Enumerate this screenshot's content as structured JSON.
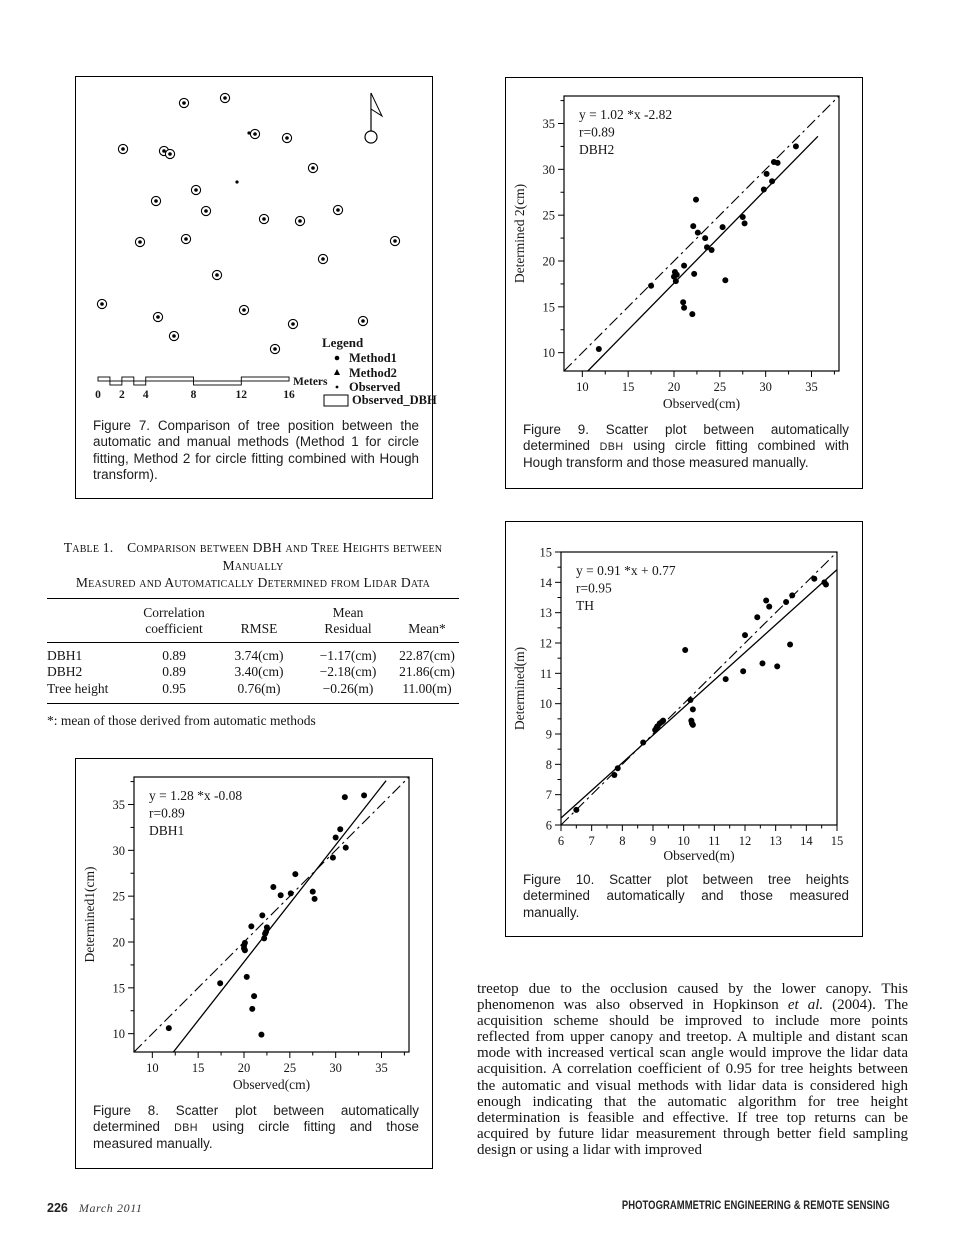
{
  "page": {
    "footer": {
      "page_number": "226",
      "issue_date": "March 2011",
      "journal": "PHOTOGRAMMETRIC ENGINEERING & REMOTE SENSING"
    }
  },
  "figure7": {
    "caption": "Figure 7. Comparison of tree position between the automatic and manual methods (Method 1 for circle fitting, Method 2 for circle fitting combined with Hough transform).",
    "legend": {
      "title": "Legend",
      "items": [
        {
          "symbol": "dot",
          "label": "Method1"
        },
        {
          "symbol": "triangle",
          "label": "Method2"
        },
        {
          "symbol": "small-dot",
          "label": "Observed"
        },
        {
          "symbol": "rect",
          "label": "Observed_DBH"
        }
      ]
    },
    "scalebar": {
      "labels": [
        "0",
        "2",
        "4",
        "8",
        "12",
        "16"
      ],
      "unit": "Meters"
    },
    "map_points": [
      [
        98,
        18,
        "cd"
      ],
      [
        139,
        13,
        "cd"
      ],
      [
        163,
        48,
        "d"
      ],
      [
        169,
        49,
        "cd"
      ],
      [
        201,
        53,
        "cd"
      ],
      [
        37,
        64,
        "cd"
      ],
      [
        78,
        66,
        "cd"
      ],
      [
        84,
        69,
        "cd"
      ],
      [
        227,
        83,
        "cd"
      ],
      [
        151,
        97,
        "d"
      ],
      [
        110,
        105,
        "cd"
      ],
      [
        70,
        116,
        "cd"
      ],
      [
        120,
        126,
        "cd"
      ],
      [
        252,
        125,
        "cd"
      ],
      [
        178,
        134,
        "cd"
      ],
      [
        214,
        136,
        "cd"
      ],
      [
        54,
        157,
        "cd"
      ],
      [
        100,
        154,
        "cd"
      ],
      [
        309,
        156,
        "cd"
      ],
      [
        237,
        174,
        "cd"
      ],
      [
        131,
        190,
        "cd"
      ],
      [
        16,
        219,
        "cd"
      ],
      [
        72,
        232,
        "cd"
      ],
      [
        158,
        225,
        "cd"
      ],
      [
        207,
        239,
        "cd"
      ],
      [
        277,
        236,
        "cd"
      ],
      [
        88,
        251,
        "cd"
      ],
      [
        189,
        264,
        "cd"
      ]
    ]
  },
  "table1": {
    "title_lines": [
      "Table 1. Comparison between DBH and Tree Heights between Manually",
      "Measured and Automatically Determined from Lidar Data"
    ],
    "headers": [
      [
        "Correlation",
        "coefficient"
      ],
      [
        "",
        "RMSE"
      ],
      [
        "Mean",
        "Residual"
      ],
      [
        "",
        "Mean*"
      ]
    ],
    "rows": [
      [
        "DBH1",
        "0.89",
        "3.74(cm)",
        "−1.17(cm)",
        "22.87(cm)"
      ],
      [
        "DBH2",
        "0.89",
        "3.40(cm)",
        "−2.18(cm)",
        "21.86(cm)"
      ],
      [
        "Tree height",
        "0.95",
        "0.76(m)",
        "−0.26(m)",
        "11.00(m)"
      ]
    ],
    "footnote": "*: mean of those derived from automatic methods"
  },
  "chart_data": [
    {
      "id": "fig9",
      "type": "scatter",
      "annotation": [
        "y = 1.02 *x -2.82",
        "r=0.89",
        "DBH2"
      ],
      "xlabel": "Observed(cm)",
      "ylabel": "Determined 2(cm)",
      "xlim": [
        8,
        38
      ],
      "ylim": [
        8,
        38
      ],
      "xticks": [
        10,
        15,
        20,
        25,
        30,
        35
      ],
      "yticks": [
        10,
        15,
        20,
        25,
        30,
        35
      ],
      "minor_step": 2.5,
      "fit_line": {
        "x1": 10.6,
        "y1": 8,
        "x2": 35.7,
        "y2": 33.6
      },
      "identity_line": {
        "x1": 8,
        "y1": 8,
        "x2": 38,
        "y2": 38
      },
      "points": [
        [
          11.8,
          10.4
        ],
        [
          17.5,
          17.3
        ],
        [
          20.0,
          18.3
        ],
        [
          20.1,
          18.8
        ],
        [
          20.2,
          17.8
        ],
        [
          20.3,
          18.5
        ],
        [
          21.1,
          19.5
        ],
        [
          21.0,
          15.5
        ],
        [
          21.1,
          14.9
        ],
        [
          22.0,
          14.2
        ],
        [
          22.2,
          18.6
        ],
        [
          22.4,
          26.7
        ],
        [
          22.1,
          23.8
        ],
        [
          22.6,
          23.1
        ],
        [
          23.4,
          22.5
        ],
        [
          23.6,
          21.5
        ],
        [
          24.1,
          21.2
        ],
        [
          25.3,
          23.7
        ],
        [
          25.6,
          17.9
        ],
        [
          27.5,
          24.8
        ],
        [
          27.7,
          24.1
        ],
        [
          29.8,
          27.8
        ],
        [
          30.1,
          29.5
        ],
        [
          30.7,
          28.7
        ],
        [
          30.9,
          30.8
        ],
        [
          31.3,
          30.7
        ],
        [
          33.3,
          32.5
        ]
      ],
      "caption": "Figure 9. Scatter plot between automatically determined DBH using circle fitting combined with Hough transform and those measured manually."
    },
    {
      "id": "fig10",
      "type": "scatter",
      "annotation": [
        "y = 0.91 *x + 0.77",
        "r=0.95",
        "TH"
      ],
      "xlabel": "Observed(m)",
      "ylabel": "Determined(m)",
      "xlim": [
        6,
        15
      ],
      "ylim": [
        6,
        15
      ],
      "xticks": [
        6,
        7,
        8,
        9,
        10,
        11,
        12,
        13,
        14,
        15
      ],
      "yticks": [
        6,
        7,
        8,
        9,
        10,
        11,
        12,
        13,
        14,
        15
      ],
      "minor_step": 0.5,
      "fit_line": {
        "x1": 6,
        "y1": 6.23,
        "x2": 15,
        "y2": 14.42
      },
      "identity_line": {
        "x1": 6,
        "y1": 6,
        "x2": 15,
        "y2": 15
      },
      "points": [
        [
          6.5,
          6.5
        ],
        [
          7.74,
          7.65
        ],
        [
          7.85,
          7.87
        ],
        [
          8.68,
          8.72
        ],
        [
          9.07,
          9.13
        ],
        [
          9.11,
          9.19
        ],
        [
          9.14,
          9.25
        ],
        [
          9.22,
          9.35
        ],
        [
          9.29,
          9.4
        ],
        [
          9.33,
          9.44
        ],
        [
          10.05,
          11.77
        ],
        [
          10.22,
          10.12
        ],
        [
          10.3,
          9.81
        ],
        [
          10.25,
          9.44
        ],
        [
          10.27,
          9.35
        ],
        [
          10.3,
          9.3
        ],
        [
          11.37,
          10.81
        ],
        [
          11.94,
          11.07
        ],
        [
          12.0,
          12.26
        ],
        [
          12.4,
          12.85
        ],
        [
          12.57,
          11.33
        ],
        [
          12.69,
          13.4
        ],
        [
          12.79,
          13.2
        ],
        [
          13.05,
          11.23
        ],
        [
          13.34,
          13.35
        ],
        [
          13.54,
          13.57
        ],
        [
          13.47,
          11.95
        ],
        [
          14.26,
          14.12
        ],
        [
          14.59,
          14.0
        ],
        [
          14.64,
          13.93
        ]
      ],
      "caption": "Figure 10. Scatter plot between tree heights determined automatically and those measured manually."
    },
    {
      "id": "fig8",
      "type": "scatter",
      "annotation": [
        "y = 1.28 *x -0.08",
        "r=0.89",
        "DBH1"
      ],
      "xlabel": "Observed(cm)",
      "ylabel": "Determined1(cm)",
      "xlim": [
        8,
        38
      ],
      "ylim": [
        8,
        38
      ],
      "xticks": [
        10,
        15,
        20,
        25,
        30,
        35
      ],
      "yticks": [
        10,
        15,
        20,
        25,
        30,
        35
      ],
      "minor_step": 2.5,
      "fit_line": {
        "x1": 12.3,
        "y1": 8,
        "x2": 35.5,
        "y2": 37.6
      },
      "identity_line": {
        "x1": 8,
        "y1": 8,
        "x2": 38,
        "y2": 38
      },
      "points": [
        [
          11.8,
          10.6
        ],
        [
          17.4,
          15.5
        ],
        [
          20.0,
          19.6
        ],
        [
          20.0,
          19.3
        ],
        [
          20.1,
          19.9
        ],
        [
          20.1,
          19.1
        ],
        [
          20.3,
          16.2
        ],
        [
          20.8,
          21.7
        ],
        [
          21.1,
          14.1
        ],
        [
          20.9,
          12.7
        ],
        [
          21.9,
          9.9
        ],
        [
          22.0,
          22.9
        ],
        [
          22.2,
          20.4
        ],
        [
          22.4,
          21.1
        ],
        [
          22.5,
          21.6
        ],
        [
          22.3,
          20.9
        ],
        [
          23.2,
          26.0
        ],
        [
          24.0,
          25.1
        ],
        [
          25.1,
          25.3
        ],
        [
          25.6,
          27.4
        ],
        [
          27.5,
          25.5
        ],
        [
          27.7,
          24.7
        ],
        [
          29.7,
          29.2
        ],
        [
          30.0,
          31.4
        ],
        [
          30.5,
          32.3
        ],
        [
          31.0,
          35.8
        ],
        [
          31.1,
          30.3
        ],
        [
          33.1,
          36.0
        ]
      ],
      "caption": "Figure 8. Scatter plot between automatically determined DBH using circle fitting and those measured manually."
    }
  ],
  "body_text": {
    "parts": [
      {
        "t": "treetop due to the occlusion caused by the lower canopy. This phenomenon was also observed in Hopkinson "
      },
      {
        "t": "et al.",
        "italic": true
      },
      {
        "t": " (2004). The acquisition scheme should be improved to include more points reflected from upper canopy and treetop. A multiple and distant scan mode with increased vertical scan angle would improve the lidar data acquisition. A correlation coefficient of 0.95 for tree heights between the automatic and visual methods with lidar data is considered high enough indicating that the automatic algorithm for tree height determination is feasible and effective. If tree top returns can be acquired by future lidar measurement through better field sampling design or using a lidar with improved"
      }
    ]
  }
}
